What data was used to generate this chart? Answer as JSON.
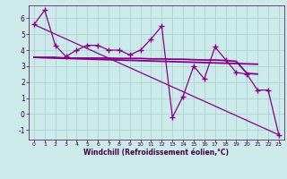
{
  "background_color": "#cceaea",
  "grid_color": "#aacccc",
  "line_color": "#880088",
  "xlabel": "Windchill (Refroidissement éolien,°C)",
  "xlim": [
    -0.5,
    23.5
  ],
  "ylim": [
    -1.6,
    6.8
  ],
  "yticks": [
    -1,
    0,
    1,
    2,
    3,
    4,
    5,
    6
  ],
  "xticks": [
    0,
    1,
    2,
    3,
    4,
    5,
    6,
    7,
    8,
    9,
    10,
    11,
    12,
    13,
    14,
    15,
    16,
    17,
    18,
    19,
    20,
    21,
    22,
    23
  ],
  "series": [
    {
      "x": [
        0,
        1,
        2,
        3,
        4,
        5,
        6,
        7,
        8,
        9,
        10,
        11,
        12,
        13,
        14,
        15,
        16,
        17,
        18,
        19,
        20,
        21,
        22,
        23
      ],
      "y": [
        5.6,
        6.5,
        4.3,
        3.6,
        4.0,
        4.3,
        4.3,
        4.0,
        4.0,
        3.7,
        4.0,
        4.7,
        5.5,
        -0.2,
        1.1,
        3.0,
        2.2,
        4.2,
        3.4,
        2.6,
        2.5,
        1.5,
        1.5,
        -1.3
      ],
      "marker": "+",
      "markersize": 4,
      "linewidth": 0.9,
      "linestyle": "-",
      "zorder": 3
    },
    {
      "x": [
        0,
        1,
        2,
        3,
        4,
        5,
        6,
        7,
        8,
        9,
        10,
        11,
        12,
        13,
        14,
        15,
        16,
        17,
        18,
        19,
        20,
        21
      ],
      "y": [
        3.55,
        3.55,
        3.55,
        3.5,
        3.5,
        3.5,
        3.5,
        3.5,
        3.48,
        3.48,
        3.48,
        3.45,
        3.45,
        3.43,
        3.43,
        3.4,
        3.38,
        3.38,
        3.35,
        3.3,
        2.55,
        2.5
      ],
      "marker": null,
      "markersize": 0,
      "linewidth": 1.3,
      "linestyle": "-",
      "zorder": 2
    },
    {
      "x": [
        0,
        1,
        2,
        3,
        4,
        5,
        6,
        7,
        8,
        9,
        10,
        11,
        12,
        13,
        14,
        15,
        16,
        17,
        18,
        19,
        20,
        21
      ],
      "y": [
        3.55,
        3.52,
        3.5,
        3.48,
        3.46,
        3.44,
        3.42,
        3.4,
        3.38,
        3.36,
        3.34,
        3.32,
        3.3,
        3.28,
        3.26,
        3.24,
        3.22,
        3.2,
        3.18,
        3.16,
        3.14,
        3.12
      ],
      "marker": null,
      "markersize": 0,
      "linewidth": 1.3,
      "linestyle": "-",
      "zorder": 2
    },
    {
      "x": [
        0,
        23
      ],
      "y": [
        5.6,
        -1.3
      ],
      "marker": null,
      "markersize": 0,
      "linewidth": 0.9,
      "linestyle": "-",
      "zorder": 1
    }
  ]
}
